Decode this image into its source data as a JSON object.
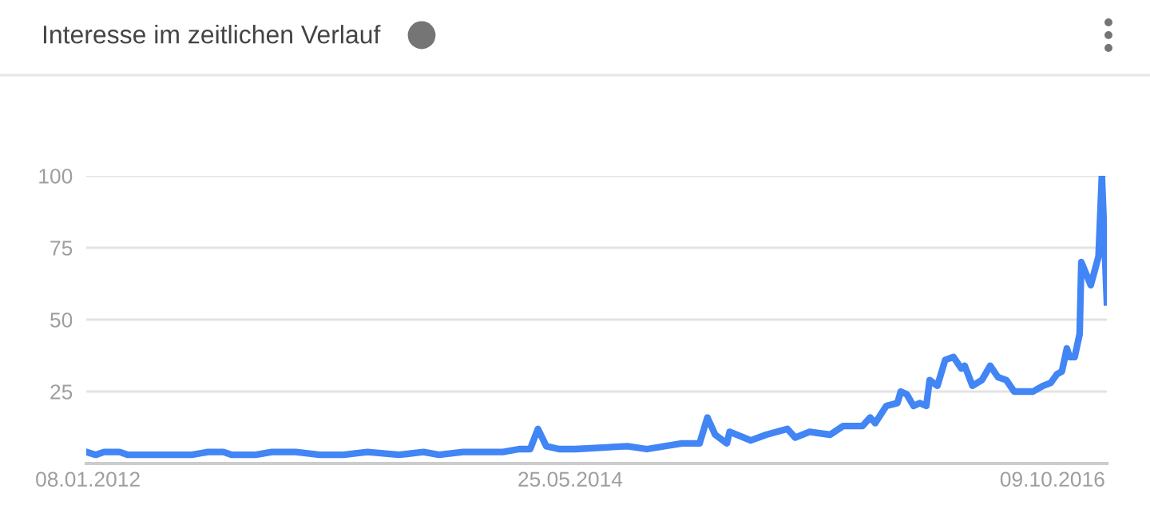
{
  "chart_data": {
    "type": "line",
    "title": "Interesse im zeitlichen Verlauf",
    "x": [
      "2012-01-05",
      "2012-01-22",
      "2012-02-06",
      "2012-03-05",
      "2012-03-20",
      "2012-04-12",
      "2012-05-16",
      "2012-07-13",
      "2012-08-11",
      "2012-09-08",
      "2012-09-23",
      "2012-11-05",
      "2012-12-04",
      "2013-01-16",
      "2013-02-28",
      "2013-04-12",
      "2013-05-25",
      "2013-07-21",
      "2013-09-03",
      "2013-10-01",
      "2013-11-13",
      "2013-12-27",
      "2014-01-24",
      "2014-02-22",
      "2014-03-14",
      "2014-03-28",
      "2014-04-12",
      "2014-05-05",
      "2014-06-03",
      "2014-09-05",
      "2014-10-10",
      "2014-12-12",
      "2015-01-13",
      "2015-01-27",
      "2015-02-10",
      "2015-03-03",
      "2015-03-08",
      "2015-04-15",
      "2015-05-13",
      "2015-06-20",
      "2015-07-04",
      "2015-07-30",
      "2015-09-05",
      "2015-09-28",
      "2015-11-02",
      "2015-11-16",
      "2015-11-25",
      "2015-12-15",
      "2016-01-04",
      "2016-01-10",
      "2016-01-21",
      "2016-02-02",
      "2016-02-13",
      "2016-02-25",
      "2016-03-02",
      "2016-03-16",
      "2016-03-30",
      "2016-04-14",
      "2016-04-28",
      "2016-05-04",
      "2016-05-18",
      "2016-06-04",
      "2016-06-19",
      "2016-07-03",
      "2016-07-18",
      "2016-08-01",
      "2016-09-04",
      "2016-09-22",
      "2016-10-06",
      "2016-10-17",
      "2016-10-26",
      "2016-11-04",
      "2016-11-09",
      "2016-11-18",
      "2016-11-27",
      "2016-11-30",
      "2016-12-17",
      "2016-12-31",
      "2017-01-06",
      "2017-01-15"
    ],
    "series": [
      {
        "color": "#4285f4",
        "values": [
          4,
          3,
          4,
          4,
          3,
          3,
          3,
          3,
          4,
          4,
          3,
          3,
          4,
          4,
          3,
          3,
          4,
          3,
          4,
          3,
          4,
          4,
          4,
          5,
          5,
          12,
          6,
          5,
          5,
          6,
          5,
          7,
          7,
          16,
          10,
          7,
          11,
          8,
          10,
          12,
          9,
          11,
          10,
          13,
          13,
          16,
          14,
          20,
          21,
          25,
          24,
          20,
          21,
          20,
          29,
          27,
          36,
          37,
          33,
          34,
          27,
          29,
          34,
          30,
          29,
          25,
          25,
          27,
          28,
          31,
          32,
          40,
          37,
          37,
          45,
          70,
          62,
          72,
          100,
          56
        ]
      }
    ],
    "xlim": [
      "2012-01-05",
      "2017-01-15"
    ],
    "xticks": [
      {
        "value": "2012-01-08",
        "label": "08.01.2012"
      },
      {
        "value": "2014-05-25",
        "label": "25.05.2014"
      },
      {
        "value": "2016-10-09",
        "label": "09.10.2016"
      }
    ],
    "ylim": [
      0,
      100
    ],
    "yticks": [
      25,
      50,
      75,
      100
    ],
    "grid": "y",
    "line_style": "solid",
    "marker": "none",
    "legend": false
  }
}
